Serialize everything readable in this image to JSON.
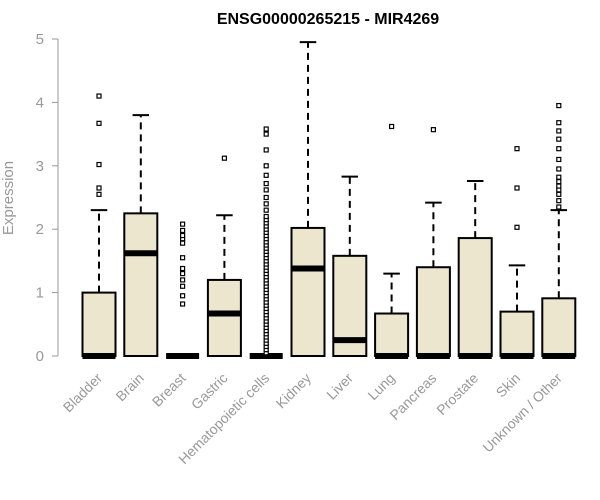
{
  "chart_data": {
    "type": "boxplot",
    "title": "ENSG00000265215 - MIR4269",
    "xlabel": "",
    "ylabel": "Expression",
    "ylim": [
      0,
      5
    ],
    "yticks": [
      0,
      1,
      2,
      3,
      4,
      5
    ],
    "grid": false,
    "box_fill": "#ede6ce",
    "categories": [
      "Bladder",
      "Brain",
      "Breast",
      "Gastric",
      "Hematopoietic cells",
      "Kidney",
      "Liver",
      "Lung",
      "Pancreas",
      "Prostate",
      "Skin",
      "Unknown / Other"
    ],
    "boxes": [
      {
        "q1": 0,
        "median": 0,
        "q3": 1.0,
        "whisker_low": 0,
        "whisker_high": 2.3,
        "outliers": [
          2.55,
          2.65,
          3.02,
          3.67,
          4.1
        ]
      },
      {
        "q1": 0,
        "median": 1.62,
        "q3": 2.25,
        "whisker_low": 0,
        "whisker_high": 3.8,
        "outliers": []
      },
      {
        "q1": 0,
        "median": 0,
        "q3": 0,
        "whisker_low": 0,
        "whisker_high": 0,
        "outliers": [
          0.82,
          0.95,
          1.1,
          1.2,
          1.3,
          1.38,
          1.55,
          1.78,
          1.85,
          1.9,
          1.98,
          2.08
        ]
      },
      {
        "q1": 0,
        "median": 0.67,
        "q3": 1.2,
        "whisker_low": 0,
        "whisker_high": 2.22,
        "outliers": [
          3.12
        ]
      },
      {
        "q1": 0,
        "median": 0,
        "q3": 0,
        "whisker_low": 0,
        "whisker_high": 0,
        "outliers": [
          0.05,
          0.1,
          0.15,
          0.2,
          0.25,
          0.3,
          0.35,
          0.4,
          0.45,
          0.5,
          0.55,
          0.6,
          0.65,
          0.7,
          0.75,
          0.8,
          0.85,
          0.9,
          0.95,
          1.0,
          1.05,
          1.1,
          1.15,
          1.2,
          1.25,
          1.3,
          1.35,
          1.4,
          1.45,
          1.5,
          1.55,
          1.6,
          1.65,
          1.7,
          1.75,
          1.8,
          1.85,
          1.9,
          1.95,
          2.0,
          2.05,
          2.1,
          2.15,
          2.2,
          2.3,
          2.4,
          2.5,
          2.62,
          2.72,
          2.85,
          3.0,
          3.25,
          3.5,
          3.58
        ]
      },
      {
        "q1": 0,
        "median": 1.38,
        "q3": 2.02,
        "whisker_low": 0,
        "whisker_high": 4.95,
        "outliers": []
      },
      {
        "q1": 0,
        "median": 0.25,
        "q3": 1.58,
        "whisker_low": 0,
        "whisker_high": 2.83,
        "outliers": []
      },
      {
        "q1": 0,
        "median": 0,
        "q3": 0.67,
        "whisker_low": 0,
        "whisker_high": 1.3,
        "outliers": [
          3.62
        ]
      },
      {
        "q1": 0,
        "median": 0,
        "q3": 1.4,
        "whisker_low": 0,
        "whisker_high": 2.42,
        "outliers": [
          3.57
        ]
      },
      {
        "q1": 0,
        "median": 0,
        "q3": 1.86,
        "whisker_low": 0,
        "whisker_high": 2.76,
        "outliers": []
      },
      {
        "q1": 0,
        "median": 0,
        "q3": 0.7,
        "whisker_low": 0,
        "whisker_high": 1.43,
        "outliers": [
          2.03,
          2.65,
          3.27
        ]
      },
      {
        "q1": 0,
        "median": 0,
        "q3": 0.91,
        "whisker_low": 0,
        "whisker_high": 2.3,
        "outliers": [
          2.35,
          2.45,
          2.55,
          2.62,
          2.68,
          2.75,
          2.82,
          2.95,
          3.1,
          3.27,
          3.42,
          3.55,
          3.68,
          3.95
        ]
      }
    ]
  }
}
